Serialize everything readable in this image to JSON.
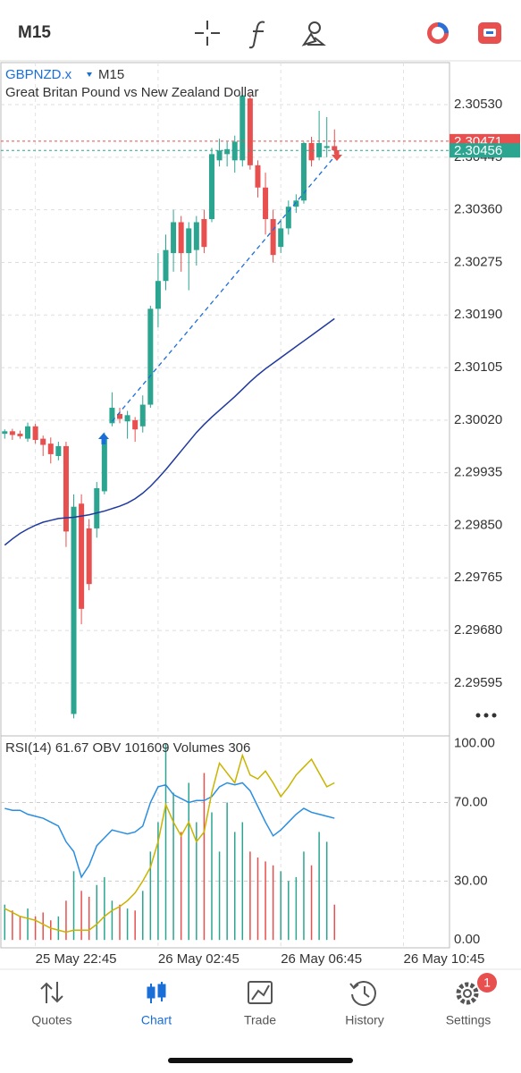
{
  "toolbar": {
    "timeframe": "M15"
  },
  "chart_data": {
    "type": "candlestick",
    "symbol": "GBPNZD.x",
    "timeframe": "M15",
    "description": "Great Britan Pound vs New Zealand Dollar",
    "up_color": "#2ba590",
    "down_color": "#e84f4f",
    "open": [
      2.29998,
      2.30002,
      2.29998,
      2.2999,
      2.3001,
      2.2999,
      2.29982,
      2.29962,
      2.29978,
      2.29545,
      2.29885,
      2.29845,
      2.29845,
      2.29905,
      2.30015,
      2.3003,
      2.30018,
      2.3002,
      2.3001,
      2.30045,
      2.302,
      2.30245,
      2.3029,
      2.3034,
      2.3029,
      2.30295,
      2.30345,
      2.30345,
      2.3044,
      2.3045,
      2.3044,
      2.3044,
      2.3054,
      2.30432,
      2.30396,
      2.30345,
      2.303,
      2.3033,
      2.30365,
      2.30375,
      2.30468,
      2.30445,
      2.3046,
      2.30463
    ],
    "high": [
      2.30005,
      2.30006,
      2.30003,
      2.30016,
      2.30014,
      2.29995,
      2.29992,
      2.29985,
      2.29985,
      2.299,
      2.299,
      2.2986,
      2.2992,
      2.3,
      2.30065,
      2.3004,
      2.30035,
      2.30025,
      2.3006,
      2.30205,
      2.3029,
      2.3032,
      2.3036,
      2.3035,
      2.3034,
      2.3035,
      2.3036,
      2.3046,
      2.30475,
      2.3047,
      2.3048,
      2.30545,
      2.30548,
      2.3044,
      2.3042,
      2.3036,
      2.30345,
      2.30375,
      2.30385,
      2.3047,
      2.30478,
      2.3052,
      2.3051,
      2.3049
    ],
    "low": [
      2.2999,
      2.29988,
      2.2999,
      2.29985,
      2.29982,
      2.29962,
      2.2995,
      2.29955,
      2.29815,
      2.29538,
      2.2969,
      2.29745,
      2.2983,
      2.299,
      2.3001,
      2.30015,
      2.2999,
      2.29985,
      2.3,
      2.3004,
      2.3017,
      2.3023,
      2.3026,
      2.3026,
      2.3023,
      2.3027,
      2.3029,
      2.3034,
      2.3043,
      2.3043,
      2.3042,
      2.3043,
      2.30425,
      2.3038,
      2.3032,
      2.30275,
      2.3029,
      2.3032,
      2.30355,
      2.3037,
      2.3043,
      2.3044,
      2.30445,
      2.3045
    ],
    "close": [
      2.30002,
      2.29996,
      2.29994,
      2.3001,
      2.29988,
      2.2998,
      2.29965,
      2.29978,
      2.2984,
      2.2988,
      2.29715,
      2.29755,
      2.2991,
      2.2999,
      2.3004,
      2.30022,
      2.30028,
      2.30005,
      2.30045,
      2.302,
      2.30245,
      2.30295,
      2.3034,
      2.3029,
      2.3033,
      2.3034,
      2.303,
      2.3045,
      2.30456,
      2.30458,
      2.3047,
      2.30545,
      2.30432,
      2.30396,
      2.30345,
      2.30287,
      2.3033,
      2.30365,
      2.30375,
      2.30468,
      2.3044,
      2.30468,
      2.30463,
      2.30456
    ],
    "moving_average": {
      "color": "#1f3a9e",
      "values": [
        2.29818,
        2.29828,
        2.29837,
        2.29844,
        2.2985,
        2.29855,
        2.29858,
        2.29861,
        2.29862,
        2.29863,
        2.29865,
        2.29867,
        2.2987,
        2.29873,
        2.29877,
        2.29881,
        2.29886,
        2.29893,
        2.29902,
        2.29913,
        2.29926,
        2.2994,
        2.29955,
        2.2997,
        2.29985,
        2.3,
        2.30013,
        2.30025,
        2.30036,
        2.30047,
        2.30058,
        2.3007,
        2.30082,
        2.30093,
        2.30103,
        2.30112,
        2.30121,
        2.3013,
        2.30139,
        2.30148,
        2.30157,
        2.30166,
        2.30175,
        2.30184
      ]
    },
    "trendline": {
      "color": "#1a6ed8",
      "x": [
        14,
        43
      ],
      "values": [
        2.30018,
        2.30446
      ]
    },
    "ask": 2.30471,
    "ask_color": "#e84f4f",
    "bid": 2.30456,
    "bid_color": "#2ba590",
    "xlim": [
      -0.5,
      58
    ],
    "xticks": [
      {
        "value": 4,
        "label": "25 May 22:45"
      },
      {
        "value": 20,
        "label": "26 May 02:45"
      },
      {
        "value": 36,
        "label": "26 May 06:45"
      },
      {
        "value": 52,
        "label": "26 May 10:45"
      }
    ],
    "ylim": [
      2.29511,
      2.30598
    ],
    "yticks": [
      {
        "value": 2.3053,
        "label": "2.30530"
      },
      2.30445,
      {
        "value": 2.3036,
        "label": "2.30360"
      },
      2.30275,
      {
        "value": 2.3019,
        "label": "2.30190"
      },
      2.30105,
      {
        "value": 2.3002,
        "label": "2.30020"
      },
      2.29935,
      {
        "value": 2.2985,
        "label": "2.29850"
      },
      2.29765,
      {
        "value": 2.2968,
        "label": "2.29680"
      },
      2.29595
    ],
    "grid": true
  },
  "indicator": {
    "title": "RSI(14) 61.67 OBV 101609 Volumes 306",
    "ylim": [
      -4,
      103
    ],
    "yticks": [
      {
        "value": 100,
        "label": "100.00"
      },
      {
        "value": 70,
        "label": "70.00"
      },
      {
        "value": 30,
        "label": "30.00"
      },
      {
        "value": 0,
        "label": "0.00"
      }
    ],
    "rsi": {
      "color": "#2a8ee0",
      "values": [
        67,
        66,
        66,
        64,
        63,
        62,
        60,
        58,
        50,
        45,
        32,
        38,
        48,
        52,
        56,
        55,
        54,
        55,
        58,
        70,
        78,
        79,
        74,
        72,
        70,
        71,
        71,
        73,
        78,
        80,
        79,
        80,
        76,
        68,
        60,
        53,
        56,
        60,
        64,
        67,
        65,
        64,
        63,
        62
      ]
    },
    "obv": {
      "color": "#c9b400",
      "values": [
        16,
        14,
        12,
        11,
        10,
        8,
        6,
        5,
        4,
        5,
        5,
        5,
        8,
        12,
        15,
        17,
        20,
        24,
        30,
        37,
        50,
        69,
        60,
        53,
        60,
        50,
        55,
        75,
        90,
        85,
        80,
        94,
        84,
        82,
        86,
        80,
        73,
        78,
        84,
        88,
        92,
        85,
        78,
        80
      ]
    },
    "volumes": [
      18,
      15,
      12,
      16,
      12,
      14,
      10,
      12,
      20,
      35,
      25,
      22,
      28,
      32,
      20,
      18,
      16,
      15,
      25,
      45,
      60,
      100,
      75,
      55,
      80,
      60,
      85,
      65,
      45,
      70,
      55,
      60,
      45,
      42,
      40,
      38,
      35,
      30,
      32,
      45,
      38,
      55,
      50,
      18
    ]
  },
  "tabs": [
    {
      "label": "Quotes"
    },
    {
      "label": "Chart"
    },
    {
      "label": "Trade"
    },
    {
      "label": "History"
    },
    {
      "label": "Settings"
    }
  ],
  "active_tab": 1,
  "badge": 1
}
